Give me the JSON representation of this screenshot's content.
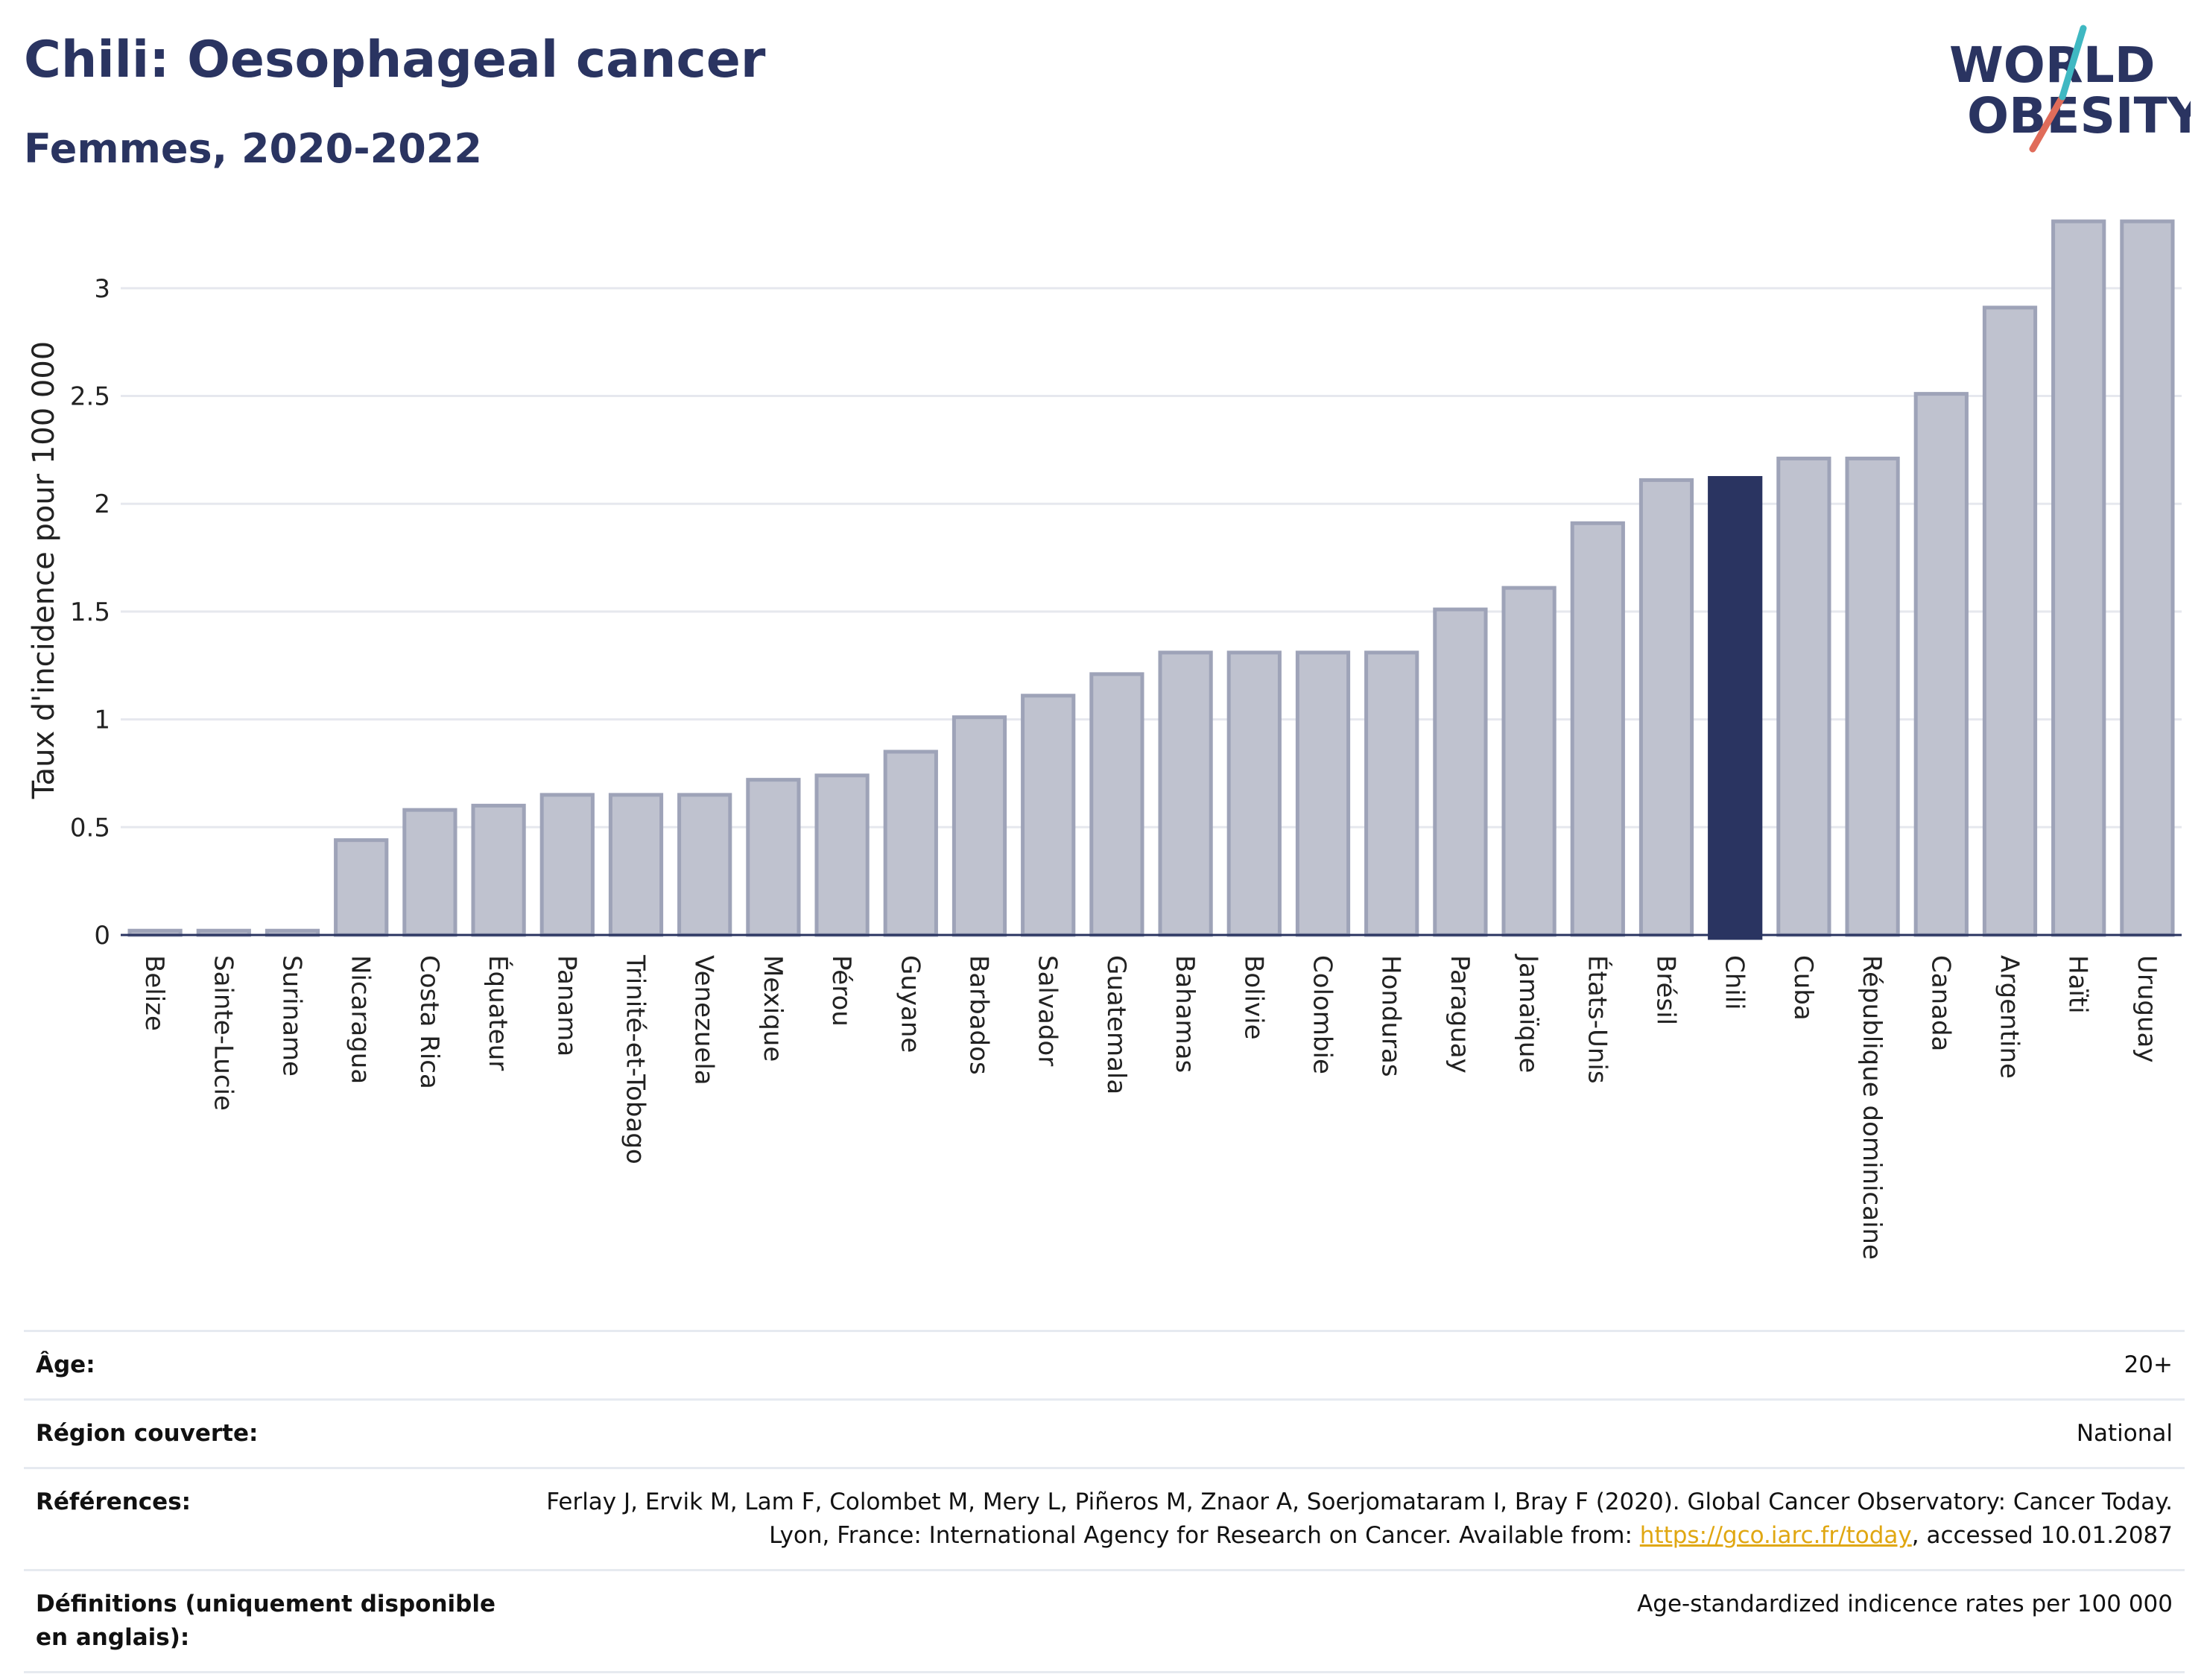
{
  "title": "Chili: Oesophageal cancer",
  "subtitle": "Femmes, 2020-2022",
  "logo": {
    "line1": "WORLD",
    "line2": "OBESITY"
  },
  "colors": {
    "highlight": "#2a3461",
    "bar": "#bfc2cf",
    "bar_stroke": "#9ea3b8",
    "grid": "#e6e8ee",
    "link": "#e0a712"
  },
  "chart_data": {
    "type": "bar",
    "ylabel": "Taux d'incidence pour 100 000",
    "ylim": [
      0,
      3.3
    ],
    "yticks": [
      0,
      0.5,
      1,
      1.5,
      2,
      2.5,
      3
    ],
    "ytick_labels": [
      "0",
      "0.5",
      "1",
      "1.5",
      "2",
      "2.5",
      "3"
    ],
    "grid": true,
    "highlight": "Chili",
    "categories": [
      "Belize",
      "Sainte-Lucie",
      "Suriname",
      "Nicaragua",
      "Costa Rica",
      "Équateur",
      "Panama",
      "Trinité-et-Tobago",
      "Venezuela",
      "Mexique",
      "Pérou",
      "Guyane",
      "Barbados",
      "Salvador",
      "Guatemala",
      "Bahamas",
      "Bolivie",
      "Colombie",
      "Honduras",
      "Paraguay",
      "Jamaïque",
      "États-Unis",
      "Brésil",
      "Chili",
      "Cuba",
      "République dominicaine",
      "Canada",
      "Argentine",
      "Haïti",
      "Uruguay"
    ],
    "values": [
      0.02,
      0.02,
      0.02,
      0.44,
      0.58,
      0.6,
      0.65,
      0.65,
      0.65,
      0.72,
      0.74,
      0.85,
      1.01,
      1.11,
      1.21,
      1.31,
      1.31,
      1.31,
      1.31,
      1.51,
      1.61,
      1.91,
      2.11,
      2.12,
      2.21,
      2.21,
      2.51,
      2.91,
      3.31,
      3.31
    ]
  },
  "info": {
    "age_label": "Âge:",
    "age_value": "20+",
    "region_label": "Région couverte:",
    "region_value": "National",
    "references_label": "Références:",
    "references_text": "Ferlay J, Ervik M, Lam F, Colombet M, Mery L, Piñeros M, Znaor A, Soerjomataram I, Bray F (2020). Global Cancer Observatory: Cancer Today. Lyon, France: International Agency for Research on Cancer. Available from: ",
    "references_link": "https://gco.iarc.fr/today",
    "references_suffix": ", accessed 10.01.2087",
    "definitions_label": "Définitions (uniquement disponible en anglais):",
    "definitions_value": "Age-standardized indicence rates per 100 000"
  }
}
